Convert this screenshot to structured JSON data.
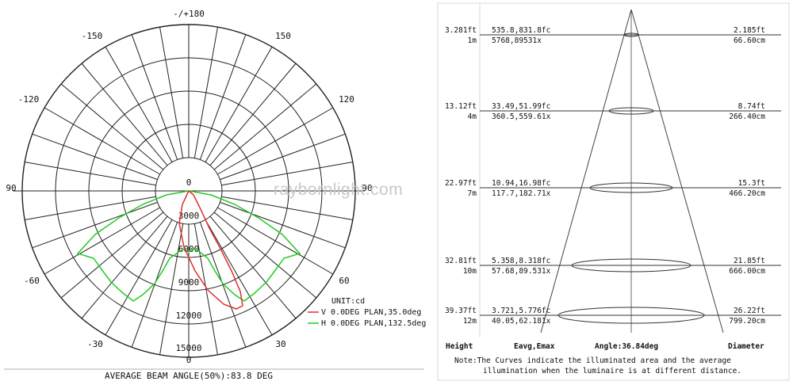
{
  "watermark": "raybornlight.com",
  "polar": {
    "angle_labels": {
      "top": "-/+180",
      "left_upper_1": "-150",
      "right_upper_1": "150",
      "left_upper_2": "-120",
      "right_upper_2": "120",
      "left_mid": "90",
      "right_mid": "90",
      "left_lower_1": "-60",
      "right_lower_1": "60",
      "left_lower_2": "-30",
      "right_lower_2": "30",
      "bottom": "0"
    },
    "center_label": "0",
    "radial_labels": [
      "3000",
      "6000",
      "9000",
      "12000",
      "15000"
    ],
    "unit": "UNIT:cd",
    "legend": [
      {
        "label": "V 0.0DEG PLAN,35.0deg",
        "color": "#e03030"
      },
      {
        "label": "H 0.0DEG PLAN,132.5deg",
        "color": "#22cc22"
      }
    ],
    "footer": "AVERAGE BEAM ANGLE(50%):83.8 DEG"
  },
  "cone": {
    "rows": [
      {
        "height_ft": "3.281ft",
        "height_m": "1m",
        "fc": "535.8,831.8fc",
        "lx": "5768,89531x",
        "dia_ft": "2.185ft",
        "dia_cm": "66.60cm"
      },
      {
        "height_ft": "13.12ft",
        "height_m": "4m",
        "fc": "33.49,51.99fc",
        "lx": "360.5,559.61x",
        "dia_ft": "8.74ft",
        "dia_cm": "266.40cm"
      },
      {
        "height_ft": "22.97ft",
        "height_m": "7m",
        "fc": "10.94,16.98fc",
        "lx": "117.7,182.71x",
        "dia_ft": "15.3ft",
        "dia_cm": "466.20cm"
      },
      {
        "height_ft": "32.81ft",
        "height_m": "10m",
        "fc": "5.358,8.318fc",
        "lx": "57.68,89.531x",
        "dia_ft": "21.85ft",
        "dia_cm": "666.00cm"
      },
      {
        "height_ft": "39.37ft",
        "height_m": "12m",
        "fc": "3.721,5.776fc",
        "lx": "40.05,62.181x",
        "dia_ft": "26.22ft",
        "dia_cm": "799.20cm"
      }
    ],
    "footer_height": "Height",
    "footer_eavg": "Eavg,Emax",
    "footer_angle": "Angle:36.84deg",
    "footer_diameter": "Diameter",
    "note_line1": "Note:The Curves indicate the illuminated area and the average",
    "note_line2": "illumination when the luminaire is at different distance."
  }
}
